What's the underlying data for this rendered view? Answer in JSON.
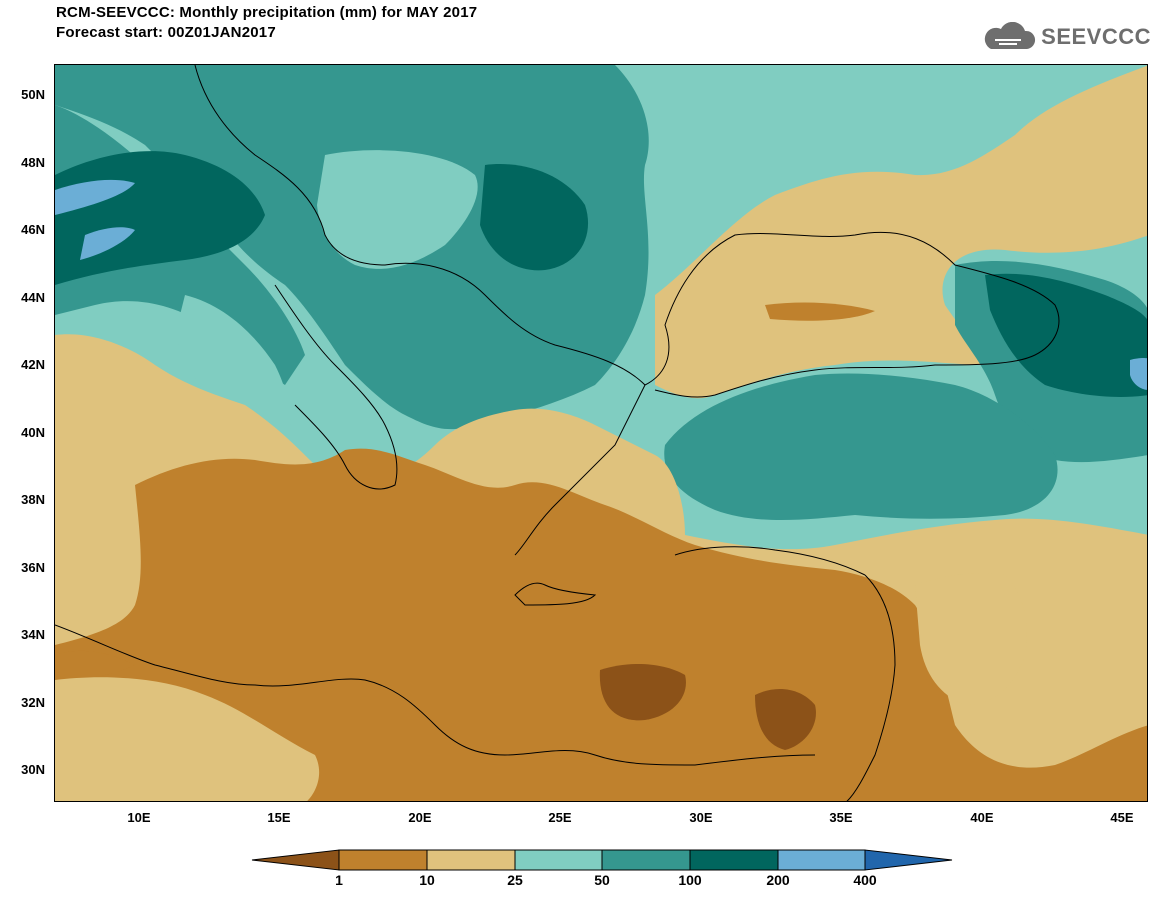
{
  "header": {
    "title_line1": "RCM-SEEVCCC: Monthly precipitation (mm) for MAY 2017",
    "title_line2": "Forecast start: 00Z01JAN2017",
    "logo_text": "SEEVCCC"
  },
  "map": {
    "lat_labels": [
      "50N",
      "48N",
      "46N",
      "44N",
      "42N",
      "40N",
      "38N",
      "36N",
      "34N",
      "32N",
      "30N"
    ],
    "lon_labels": [
      "10E",
      "15E",
      "20E",
      "25E",
      "30E",
      "35E",
      "40E",
      "45E"
    ]
  },
  "colorbar": {
    "labels": [
      "1",
      "10",
      "25",
      "50",
      "100",
      "200",
      "400"
    ],
    "colors": [
      "#8c5218",
      "#bf812d",
      "#dfc27d",
      "#80cdc1",
      "#35978f",
      "#01665e",
      "#6baed6",
      "#2166ac"
    ]
  }
}
